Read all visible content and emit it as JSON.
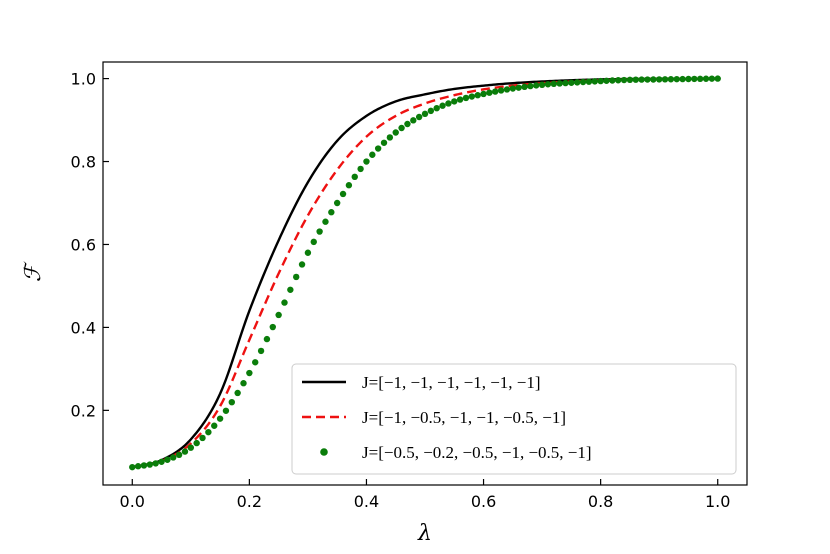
{
  "chart_data": {
    "type": "line",
    "title": "",
    "xlabel": "λ",
    "ylabel": "ℱ",
    "xlim": [
      -0.05,
      1.05
    ],
    "ylim": [
      0.02,
      1.04
    ],
    "xticks": [
      0.0,
      0.2,
      0.4,
      0.6,
      0.8,
      1.0
    ],
    "xtick_labels": [
      "0.0",
      "0.2",
      "0.4",
      "0.6",
      "0.8",
      "1.0"
    ],
    "yticks": [
      0.2,
      0.4,
      0.6,
      0.8,
      1.0
    ],
    "ytick_labels": [
      "0.2",
      "0.4",
      "0.6",
      "0.8",
      "1.0"
    ],
    "grid": false,
    "legend_position": "lower-right",
    "x": [
      0.0,
      0.05,
      0.1,
      0.15,
      0.2,
      0.25,
      0.3,
      0.35,
      0.4,
      0.45,
      0.5,
      0.55,
      0.6,
      0.65,
      0.7,
      0.75,
      0.8,
      0.85,
      0.9,
      0.95,
      1.0
    ],
    "series": [
      {
        "name": "J=[−1, −1, −1, −1, −1, −1]",
        "style": "solid",
        "color": "#000000",
        "values": [
          0.063,
          0.08,
          0.13,
          0.24,
          0.44,
          0.61,
          0.75,
          0.85,
          0.91,
          0.945,
          0.962,
          0.975,
          0.983,
          0.989,
          0.993,
          0.996,
          0.998,
          0.999,
          0.9995,
          0.9998,
          1.0
        ]
      },
      {
        "name": "J=[−1, −0.5, −1, −1, −0.5, −1]",
        "style": "dashed",
        "color": "#ee1111",
        "values": [
          0.063,
          0.078,
          0.12,
          0.21,
          0.37,
          0.53,
          0.67,
          0.78,
          0.86,
          0.91,
          0.94,
          0.96,
          0.974,
          0.983,
          0.989,
          0.993,
          0.996,
          0.998,
          0.999,
          0.9995,
          1.0
        ]
      },
      {
        "name": "J=[−0.5, −0.2, −0.5, −1, −0.5, −1]",
        "style": "dots",
        "color": "#0a7d0a",
        "values": [
          0.063,
          0.076,
          0.11,
          0.18,
          0.29,
          0.43,
          0.58,
          0.7,
          0.8,
          0.87,
          0.915,
          0.945,
          0.963,
          0.976,
          0.985,
          0.99,
          0.994,
          0.997,
          0.998,
          0.999,
          1.0
        ]
      }
    ]
  }
}
